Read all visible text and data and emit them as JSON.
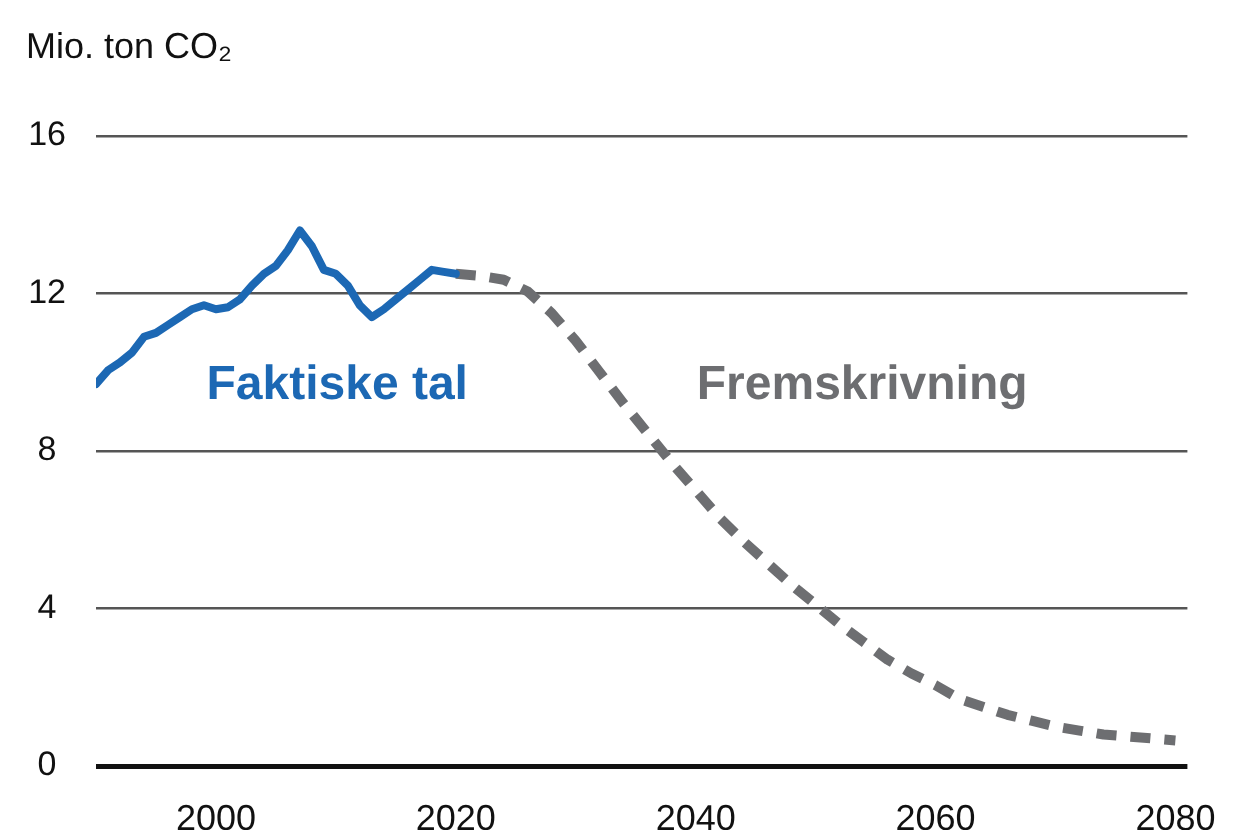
{
  "chart_data": {
    "type": "line",
    "ylabel": "Mio. ton CO₂",
    "series": [
      {
        "name": "Faktiske tal",
        "color": "#1c68b4",
        "x": [
          1990,
          1991,
          1992,
          1993,
          1994,
          1995,
          1996,
          1997,
          1998,
          1999,
          2000,
          2001,
          2002,
          2003,
          2004,
          2005,
          2006,
          2007,
          2008,
          2009,
          2010,
          2011,
          2012,
          2013,
          2014,
          2015,
          2016,
          2017,
          2018,
          2019,
          2020
        ],
        "values": [
          9.7,
          10.05,
          10.25,
          10.5,
          10.9,
          11.0,
          11.2,
          11.4,
          11.6,
          11.7,
          11.6,
          11.65,
          11.85,
          12.2,
          12.5,
          12.7,
          13.1,
          13.6,
          13.2,
          12.6,
          12.5,
          12.2,
          11.7,
          11.4,
          11.6,
          11.85,
          12.1,
          12.35,
          12.6,
          12.55,
          12.5
        ]
      },
      {
        "name": "Fremskrivning",
        "color": "#6d6e71",
        "line_style": "dashed",
        "x": [
          2020,
          2022,
          2024,
          2026,
          2028,
          2030,
          2032,
          2034,
          2036,
          2038,
          2040,
          2042,
          2044,
          2046,
          2048,
          2050,
          2052,
          2054,
          2056,
          2058,
          2060,
          2062,
          2064,
          2066,
          2068,
          2070,
          2072,
          2074,
          2076,
          2078,
          2080
        ],
        "values": [
          12.5,
          12.45,
          12.35,
          12.05,
          11.5,
          10.8,
          10.0,
          9.2,
          8.45,
          7.7,
          7.0,
          6.3,
          5.7,
          5.15,
          4.6,
          4.1,
          3.6,
          3.15,
          2.7,
          2.35,
          2.05,
          1.7,
          1.5,
          1.3,
          1.15,
          1.0,
          0.9,
          0.8,
          0.75,
          0.7,
          0.65
        ]
      }
    ],
    "xlim": [
      1990,
      2081
    ],
    "xticks": [
      2000,
      2020,
      2040,
      2060,
      2080
    ],
    "ylim": [
      0,
      16
    ],
    "yticks": [
      0,
      4,
      8,
      12,
      16
    ],
    "grid": "y",
    "marker": "none",
    "line_style": "solid"
  }
}
